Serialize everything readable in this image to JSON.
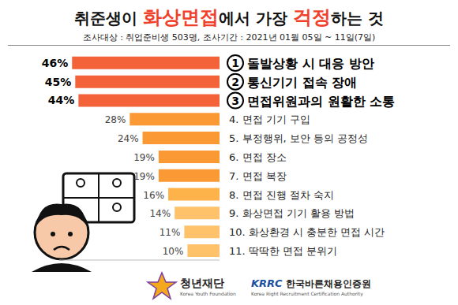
{
  "chart_data": {
    "type": "bar",
    "orientation": "horizontal",
    "title": "취준생이 화상면접에서 가장 걱정하는 것",
    "title_highlights": [
      "화상면접",
      "걱정"
    ],
    "subtitle": "조사대상 : 취업준비생 503명, 조사기간 : 2021년 01월 05일 ~ 11일(7일)",
    "categories": [
      "돌발상황 시 대응 방안",
      "통신기기 접속 장애",
      "면접위원과의 원활한 소통",
      "4. 면접 기기 구입",
      "5. 부정행위, 보안 등의 공정성",
      "6. 면접 장소",
      "7. 면접 복장",
      "8. 면접 진행 절차 숙지",
      "9. 화상면접 기기 활용 방법",
      "10. 화상환경 시 충분한 면접 시간",
      "11. 딱딱한 면접 분위기"
    ],
    "circled": [
      "1",
      "2",
      "3"
    ],
    "values": [
      46,
      45,
      44,
      28,
      24,
      19,
      19,
      16,
      14,
      11,
      10
    ],
    "value_labels": [
      "46%",
      "45%",
      "44%",
      "28%",
      "24%",
      "19%",
      "19%",
      "16%",
      "14%",
      "11%",
      "10%"
    ],
    "colors": [
      "#f4623a",
      "#f4623a",
      "#f4623a",
      "#fb9a35",
      "#fb9a35",
      "#fb9a35",
      "#fb9a35",
      "#fdb24a",
      "#fdc26a",
      "#fdc26a",
      "#fdc26a"
    ],
    "xlim": [
      0,
      50
    ],
    "data_labels": true,
    "tick_labels": "y",
    "grid": false,
    "footer": [
      "청년재단",
      "Korea Youth Foundation",
      "KRRC",
      "한국바른채용인증원",
      "Korea Right Recruitment Certification Authority"
    ]
  }
}
